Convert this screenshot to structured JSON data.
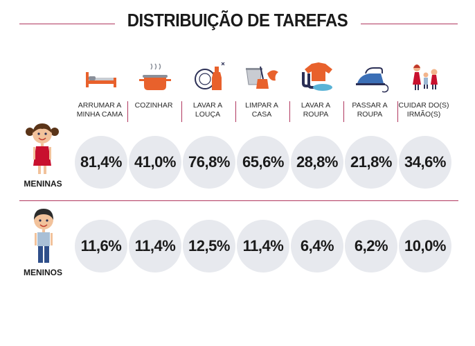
{
  "title": "DISTRIBUIÇÃO DE TAREFAS",
  "colors": {
    "accent": "#b0365e",
    "circle": "#e7e9ee",
    "icon_orange": "#e8612c",
    "icon_blue": "#3b6fb6"
  },
  "chart_data": {
    "type": "table",
    "unit": "%",
    "categories": [
      "ARRUMAR A MINHA CAMA",
      "COZINHAR",
      "LAVAR A LOUÇA",
      "LIMPAR A CASA",
      "LAVAR A ROUPA",
      "PASSAR A ROUPA",
      "CUIDAR DO(S) IRMÃO(S)"
    ],
    "category_lines": [
      [
        "ARRUMAR A",
        "MINHA CAMA"
      ],
      [
        "COZINHAR",
        ""
      ],
      [
        "LAVAR A",
        "LOUÇA"
      ],
      [
        "LIMPAR A",
        "CASA"
      ],
      [
        "LAVAR A",
        "ROUPA"
      ],
      [
        "PASSAR A",
        "ROUPA"
      ],
      [
        "CUIDAR DO(S)",
        "IRMÃO(S)"
      ]
    ],
    "icons": [
      "bed-icon",
      "cooking-pot-icon",
      "dishes-icon",
      "cleaning-supplies-icon",
      "laundry-icon",
      "iron-icon",
      "siblings-icon"
    ],
    "series": [
      {
        "name": "MENINAS",
        "values": [
          81.4,
          41.0,
          76.8,
          65.6,
          28.8,
          21.8,
          34.6
        ],
        "labels": [
          "81,4%",
          "41,0%",
          "76,8%",
          "65,6%",
          "28,8%",
          "21,8%",
          "34,6%"
        ]
      },
      {
        "name": "MENINOS",
        "values": [
          11.6,
          11.4,
          12.5,
          11.4,
          6.4,
          6.2,
          10.0
        ],
        "labels": [
          "11,6%",
          "11,4%",
          "12,5%",
          "11,4%",
          "6,4%",
          "6,2%",
          "10,0%"
        ]
      }
    ]
  }
}
